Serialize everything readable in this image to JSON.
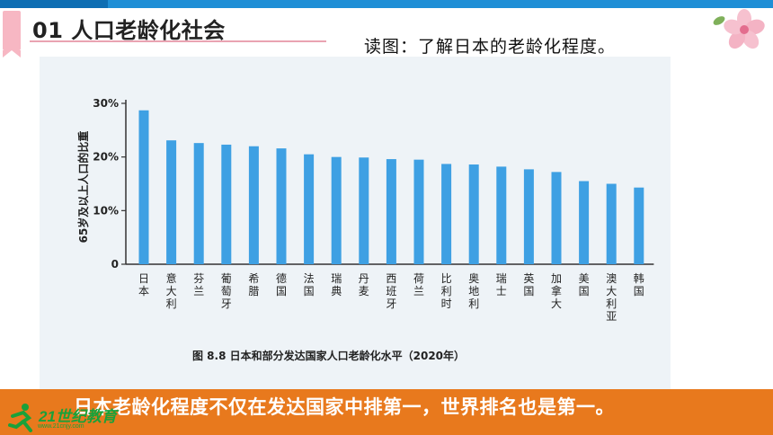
{
  "header": {
    "section_title": "01 人口老龄化社会",
    "subtitle": "读图：了解日本的老龄化程度。"
  },
  "footer": {
    "conclusion": "日本老龄化程度不仅在发达国家中排第一，世界排名也是第一。",
    "logo_text": "21世纪教育",
    "logo_url": "www.21cnjy.com"
  },
  "colors": {
    "top_band": "#1f8fd6",
    "bar": "#3ea0e3",
    "bottom_bar": "#e8791d",
    "title_accent": "#f7b7c3"
  },
  "chart_data": {
    "type": "bar",
    "caption": "图 8.8    日本和部分发达国家人口老龄化水平（2020年）",
    "xlabel": "",
    "ylabel": "65岁及以上人口的比重",
    "yticks": [
      "0",
      "10%",
      "20%",
      "30%"
    ],
    "ylim": [
      0,
      30
    ],
    "grid": false,
    "categories": [
      "日本",
      "意大利",
      "芬兰",
      "葡萄牙",
      "希腊",
      "德国",
      "法国",
      "瑞典",
      "丹麦",
      "西班牙",
      "荷兰",
      "比利时",
      "奥地利",
      "瑞士",
      "英国",
      "加拿大",
      "美国",
      "澳大利亚",
      "韩国"
    ],
    "values": [
      28.7,
      23.1,
      22.6,
      22.3,
      22.0,
      21.6,
      20.5,
      20.0,
      19.9,
      19.6,
      19.5,
      18.7,
      18.6,
      18.2,
      17.7,
      17.2,
      15.5,
      15.0,
      14.3
    ]
  }
}
